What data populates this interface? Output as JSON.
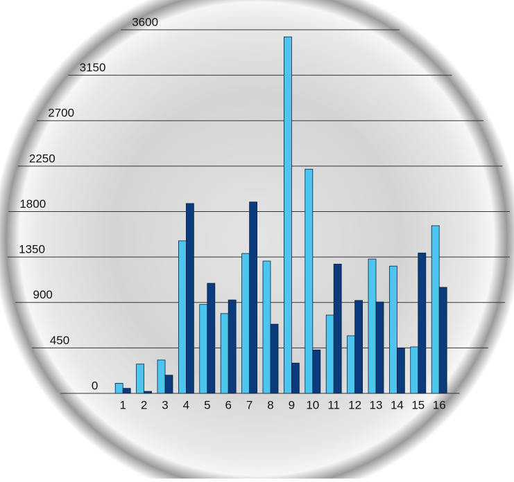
{
  "chart_data": {
    "type": "bar",
    "categories": [
      "1",
      "2",
      "3",
      "4",
      "5",
      "6",
      "7",
      "8",
      "9",
      "10",
      "11",
      "12",
      "13",
      "14",
      "15",
      "16"
    ],
    "series": [
      {
        "color": "#4cc6ef",
        "values": [
          100,
          290,
          330,
          1510,
          880,
          790,
          1385,
          1310,
          3530,
          2220,
          775,
          570,
          1330,
          1260,
          460,
          1660
        ]
      },
      {
        "color": "#0b3b7c",
        "values": [
          50,
          20,
          180,
          1880,
          1090,
          925,
          1895,
          685,
          300,
          430,
          1280,
          920,
          905,
          450,
          1390,
          1050
        ]
      }
    ],
    "ylim": [
      0,
      3600
    ],
    "yticks": [
      0,
      450,
      900,
      1350,
      1800,
      2250,
      2700,
      3150,
      3600
    ],
    "grid": true
  }
}
